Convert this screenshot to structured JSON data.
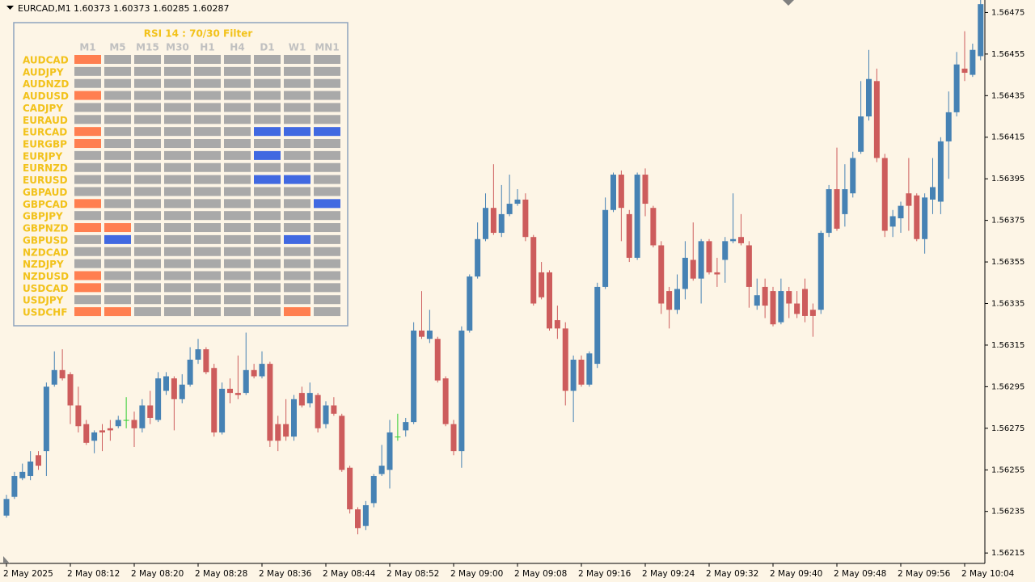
{
  "header": {
    "symbol": "EURCAD,M1",
    "quote": "1.60373 1.60373 1.60285 1.60287"
  },
  "chart_data": {
    "type": "candlestick",
    "categories": [
      "2 May 2025",
      null,
      null,
      null,
      null,
      null,
      null,
      null,
      "2 May 08:12",
      null,
      null,
      null,
      null,
      null,
      null,
      null,
      "2 May 08:20",
      null,
      null,
      null,
      null,
      null,
      null,
      null,
      "2 May 08:28",
      null,
      null,
      null,
      null,
      null,
      null,
      null,
      "2 May 08:36",
      null,
      null,
      null,
      null,
      null,
      null,
      null,
      "2 May 08:44",
      null,
      null,
      null,
      null,
      null,
      null,
      null,
      "2 May 08:52",
      null,
      null,
      null,
      null,
      null,
      null,
      null,
      "2 May 09:00",
      null,
      null,
      null,
      null,
      null,
      null,
      null,
      "2 May 09:08",
      null,
      null,
      null,
      null,
      null,
      null,
      null,
      "2 May 09:16",
      null,
      null,
      null,
      null,
      null,
      null,
      null,
      "2 May 09:24",
      null,
      null,
      null,
      null,
      null,
      null,
      null,
      "2 May 09:32",
      null,
      null,
      null,
      null,
      null,
      null,
      null,
      "2 May 09:40",
      null,
      null,
      null,
      null,
      null,
      null,
      null,
      "2 May 09:48",
      null,
      null,
      null,
      null,
      null,
      null,
      null,
      "2 May 09:56",
      null,
      null,
      null,
      null,
      null,
      null,
      null,
      "2 May 10:04",
      null,
      null
    ],
    "open": [
      1.56233,
      1.56242,
      1.56251,
      1.56252,
      1.56262,
      1.56264,
      1.56296,
      1.56303,
      1.56301,
      1.56286,
      1.56277,
      1.56269,
      1.56274,
      1.56275,
      1.56276,
      1.56279,
      1.56279,
      1.56275,
      1.56286,
      1.56279,
      1.56293,
      1.56299,
      1.56289,
      1.56296,
      1.56308,
      1.56313,
      1.56304,
      1.56273,
      1.56294,
      1.56292,
      1.56292,
      1.56303,
      1.563,
      1.56306,
      1.56277,
      1.56277,
      1.56271,
      1.56292,
      1.56287,
      1.56291,
      1.56277,
      1.56286,
      1.56281,
      1.56256,
      1.56236,
      1.56228,
      1.56239,
      1.56253,
      1.56255,
      1.56271,
      1.56274,
      1.56278,
      1.56322,
      1.56318,
      1.56318,
      1.56299,
      1.56277,
      1.56264,
      1.56322,
      1.56348,
      1.56366,
      1.56381,
      1.56369,
      1.56378,
      1.56383,
      1.56385,
      1.56367,
      1.5635,
      1.5635,
      1.56327,
      1.56323,
      1.56293,
      1.56308,
      1.56296,
      1.56306,
      1.56343,
      1.5638,
      1.56397,
      1.56378,
      1.56357,
      1.56397,
      1.56381,
      1.56363,
      1.56341,
      1.56332,
      1.56342,
      1.56356,
      1.56347,
      1.56365,
      1.5635,
      1.56356,
      1.56365,
      1.56367,
      1.56363,
      1.56334,
      1.56343,
      1.56341,
      1.56326,
      1.56341,
      1.56335,
      1.56342,
      1.56332,
      1.56332,
      1.56369,
      1.5639,
      1.56378,
      1.56388,
      1.56408,
      1.56425,
      1.56442,
      1.56405,
      1.56372,
      1.56376,
      1.56388,
      1.56387,
      1.56366,
      1.56385,
      1.56384,
      1.56413,
      1.56427,
      1.56448,
      1.56445,
      1.56454
    ],
    "high": [
      1.56243,
      1.56254,
      1.56258,
      1.56264,
      1.56264,
      1.56297,
      1.56312,
      1.56313,
      1.56302,
      1.56295,
      1.56279,
      1.56274,
      1.56277,
      1.56279,
      1.56281,
      1.5629,
      1.56283,
      1.56289,
      1.56293,
      1.56302,
      1.56302,
      1.563,
      1.56301,
      1.56314,
      1.56318,
      1.56314,
      1.56306,
      1.56297,
      1.56299,
      1.5631,
      1.56321,
      1.56306,
      1.56312,
      1.56307,
      1.56281,
      1.56289,
      1.56291,
      1.56295,
      1.56297,
      1.56292,
      1.56288,
      1.5629,
      1.56282,
      1.56257,
      1.56237,
      1.5624,
      1.56253,
      1.56267,
      1.56279,
      1.56282,
      1.5628,
      1.56326,
      1.56341,
      1.56332,
      1.56319,
      1.563,
      1.56279,
      1.56324,
      1.56349,
      1.56374,
      1.56388,
      1.56402,
      1.56392,
      1.56397,
      1.5639,
      1.56388,
      1.56368,
      1.56355,
      1.56351,
      1.56334,
      1.56326,
      1.5631,
      1.5631,
      1.56312,
      1.56345,
      1.56386,
      1.56398,
      1.56399,
      1.5638,
      1.56398,
      1.564,
      1.56382,
      1.56365,
      1.56343,
      1.56349,
      1.56365,
      1.56374,
      1.56366,
      1.56366,
      1.56357,
      1.56367,
      1.56388,
      1.56378,
      1.56365,
      1.56347,
      1.56347,
      1.56343,
      1.56347,
      1.56343,
      1.56341,
      1.56347,
      1.56335,
      1.5637,
      1.56392,
      1.5641,
      1.56402,
      1.56408,
      1.56442,
      1.56457,
      1.56448,
      1.56407,
      1.5638,
      1.56384,
      1.56405,
      1.56388,
      1.56388,
      1.56405,
      1.56415,
      1.56437,
      1.56456,
      1.56466,
      1.5646,
      1.56481
    ],
    "low": [
      1.56232,
      1.56241,
      1.5625,
      1.5625,
      1.56255,
      1.56252,
      1.56295,
      1.56298,
      1.56277,
      1.56273,
      1.56267,
      1.56263,
      1.56264,
      1.56269,
      1.56275,
      1.56275,
      1.56266,
      1.56273,
      1.56277,
      1.56278,
      1.56291,
      1.56274,
      1.56287,
      1.56295,
      1.56306,
      1.56301,
      1.56271,
      1.56272,
      1.56287,
      1.56289,
      1.56291,
      1.56299,
      1.56299,
      1.56266,
      1.56264,
      1.56269,
      1.56269,
      1.56285,
      1.56285,
      1.56273,
      1.56275,
      1.56281,
      1.56254,
      1.56234,
      1.56224,
      1.56226,
      1.56237,
      1.56252,
      1.56246,
      1.56269,
      1.56271,
      1.56277,
      1.56318,
      1.56316,
      1.56297,
      1.56276,
      1.56262,
      1.56256,
      1.56321,
      1.56347,
      1.56365,
      1.56368,
      1.56367,
      1.56377,
      1.56382,
      1.56365,
      1.56334,
      1.56337,
      1.56322,
      1.56318,
      1.56286,
      1.56278,
      1.56295,
      1.56295,
      1.56304,
      1.56342,
      1.56379,
      1.56365,
      1.56355,
      1.56356,
      1.56377,
      1.56362,
      1.5633,
      1.56323,
      1.5633,
      1.56337,
      1.56346,
      1.56335,
      1.56349,
      1.56343,
      1.56345,
      1.56364,
      1.56363,
      1.56333,
      1.56332,
      1.56328,
      1.56324,
      1.56325,
      1.56328,
      1.56328,
      1.56326,
      1.56319,
      1.5633,
      1.56367,
      1.5637,
      1.56372,
      1.56386,
      1.56407,
      1.56423,
      1.56403,
      1.56367,
      1.56367,
      1.56369,
      1.5637,
      1.56365,
      1.56359,
      1.56378,
      1.56378,
      1.56395,
      1.56425,
      1.56442,
      1.56444,
      1.56452
    ],
    "close": [
      1.56241,
      1.56252,
      1.56254,
      1.56259,
      1.56257,
      1.56295,
      1.56303,
      1.56299,
      1.56286,
      1.56276,
      1.56268,
      1.56273,
      1.56273,
      1.56274,
      1.56279,
      1.56279,
      1.56275,
      1.56286,
      1.5628,
      1.56299,
      1.563,
      1.56289,
      1.56296,
      1.56308,
      1.56313,
      1.56302,
      1.56273,
      1.56294,
      1.56292,
      1.56291,
      1.56303,
      1.563,
      1.56306,
      1.56269,
      1.56269,
      1.56271,
      1.56289,
      1.56286,
      1.56292,
      1.56275,
      1.56286,
      1.56282,
      1.56255,
      1.56236,
      1.56227,
      1.56238,
      1.56252,
      1.56257,
      1.56273,
      1.56271,
      1.56278,
      1.56322,
      1.56319,
      1.56322,
      1.56298,
      1.56277,
      1.56264,
      1.56322,
      1.56348,
      1.56366,
      1.56381,
      1.56369,
      1.56378,
      1.56383,
      1.56385,
      1.56367,
      1.56335,
      1.56338,
      1.56323,
      1.56323,
      1.56293,
      1.56308,
      1.56296,
      1.56311,
      1.56343,
      1.5638,
      1.56397,
      1.56381,
      1.56357,
      1.56397,
      1.56383,
      1.56363,
      1.56335,
      1.56332,
      1.56342,
      1.56357,
      1.56347,
      1.56365,
      1.5635,
      1.56349,
      1.56365,
      1.56366,
      1.56364,
      1.56343,
      1.56339,
      1.56334,
      1.56325,
      1.56341,
      1.56335,
      1.5633,
      1.56329,
      1.56329,
      1.56369,
      1.5639,
      1.56371,
      1.5639,
      1.56405,
      1.56425,
      1.56443,
      1.56405,
      1.5637,
      1.56377,
      1.56382,
      1.56382,
      1.56366,
      1.56386,
      1.56391,
      1.56413,
      1.56427,
      1.5645,
      1.56446,
      1.56457,
      1.56479
    ],
    "up_color": "#4682b4",
    "down_color": "#cd5c5c",
    "doji_color": "#32cd32",
    "ylim": [
      1.5621,
      1.56481
    ],
    "yticks": [
      1.56475,
      1.56455,
      1.56435,
      1.56415,
      1.56395,
      1.56375,
      1.56355,
      1.56335,
      1.56315,
      1.56295,
      1.56275,
      1.56255,
      1.56235,
      1.56215
    ]
  },
  "panel": {
    "title": "RSI 14 : 70/30 Filter",
    "columns": [
      "M1",
      "M5",
      "M15",
      "M30",
      "H1",
      "H4",
      "D1",
      "W1",
      "MN1"
    ],
    "rows": [
      {
        "pair": "AUDCAD",
        "cells": [
          "#ff7f50",
          "#a9a9a9",
          "#a9a9a9",
          "#a9a9a9",
          "#a9a9a9",
          "#a9a9a9",
          "#a9a9a9",
          "#a9a9a9",
          "#a9a9a9"
        ]
      },
      {
        "pair": "AUDJPY",
        "cells": [
          "#a9a9a9",
          "#a9a9a9",
          "#a9a9a9",
          "#a9a9a9",
          "#a9a9a9",
          "#a9a9a9",
          "#a9a9a9",
          "#a9a9a9",
          "#a9a9a9"
        ]
      },
      {
        "pair": "AUDNZD",
        "cells": [
          "#a9a9a9",
          "#a9a9a9",
          "#a9a9a9",
          "#a9a9a9",
          "#a9a9a9",
          "#a9a9a9",
          "#a9a9a9",
          "#a9a9a9",
          "#a9a9a9"
        ]
      },
      {
        "pair": "AUDUSD",
        "cells": [
          "#ff7f50",
          "#a9a9a9",
          "#a9a9a9",
          "#a9a9a9",
          "#a9a9a9",
          "#a9a9a9",
          "#a9a9a9",
          "#a9a9a9",
          "#a9a9a9"
        ]
      },
      {
        "pair": "CADJPY",
        "cells": [
          "#a9a9a9",
          "#a9a9a9",
          "#a9a9a9",
          "#a9a9a9",
          "#a9a9a9",
          "#a9a9a9",
          "#a9a9a9",
          "#a9a9a9",
          "#a9a9a9"
        ]
      },
      {
        "pair": "EURAUD",
        "cells": [
          "#a9a9a9",
          "#a9a9a9",
          "#a9a9a9",
          "#a9a9a9",
          "#a9a9a9",
          "#a9a9a9",
          "#a9a9a9",
          "#a9a9a9",
          "#a9a9a9"
        ]
      },
      {
        "pair": "EURCAD",
        "cells": [
          "#ff7f50",
          "#a9a9a9",
          "#a9a9a9",
          "#a9a9a9",
          "#a9a9a9",
          "#a9a9a9",
          "#4169e1",
          "#4169e1",
          "#4169e1"
        ]
      },
      {
        "pair": "EURGBP",
        "cells": [
          "#ff7f50",
          "#a9a9a9",
          "#a9a9a9",
          "#a9a9a9",
          "#a9a9a9",
          "#a9a9a9",
          "#a9a9a9",
          "#a9a9a9",
          "#a9a9a9"
        ]
      },
      {
        "pair": "EURJPY",
        "cells": [
          "#a9a9a9",
          "#a9a9a9",
          "#a9a9a9",
          "#a9a9a9",
          "#a9a9a9",
          "#a9a9a9",
          "#4169e1",
          "#a9a9a9",
          "#a9a9a9"
        ]
      },
      {
        "pair": "EURNZD",
        "cells": [
          "#a9a9a9",
          "#a9a9a9",
          "#a9a9a9",
          "#a9a9a9",
          "#a9a9a9",
          "#a9a9a9",
          "#a9a9a9",
          "#a9a9a9",
          "#a9a9a9"
        ]
      },
      {
        "pair": "EURUSD",
        "cells": [
          "#a9a9a9",
          "#a9a9a9",
          "#a9a9a9",
          "#a9a9a9",
          "#a9a9a9",
          "#a9a9a9",
          "#4169e1",
          "#4169e1",
          "#a9a9a9"
        ]
      },
      {
        "pair": "GBPAUD",
        "cells": [
          "#a9a9a9",
          "#a9a9a9",
          "#a9a9a9",
          "#a9a9a9",
          "#a9a9a9",
          "#a9a9a9",
          "#a9a9a9",
          "#a9a9a9",
          "#a9a9a9"
        ]
      },
      {
        "pair": "GBPCAD",
        "cells": [
          "#ff7f50",
          "#a9a9a9",
          "#a9a9a9",
          "#a9a9a9",
          "#a9a9a9",
          "#a9a9a9",
          "#a9a9a9",
          "#a9a9a9",
          "#4169e1"
        ]
      },
      {
        "pair": "GBPJPY",
        "cells": [
          "#a9a9a9",
          "#a9a9a9",
          "#a9a9a9",
          "#a9a9a9",
          "#a9a9a9",
          "#a9a9a9",
          "#a9a9a9",
          "#a9a9a9",
          "#a9a9a9"
        ]
      },
      {
        "pair": "GBPNZD",
        "cells": [
          "#ff7f50",
          "#ff7f50",
          "#a9a9a9",
          "#a9a9a9",
          "#a9a9a9",
          "#a9a9a9",
          "#a9a9a9",
          "#a9a9a9",
          "#a9a9a9"
        ]
      },
      {
        "pair": "GBPUSD",
        "cells": [
          "#a9a9a9",
          "#4169e1",
          "#a9a9a9",
          "#a9a9a9",
          "#a9a9a9",
          "#a9a9a9",
          "#a9a9a9",
          "#4169e1",
          "#a9a9a9"
        ]
      },
      {
        "pair": "NZDCAD",
        "cells": [
          "#a9a9a9",
          "#a9a9a9",
          "#a9a9a9",
          "#a9a9a9",
          "#a9a9a9",
          "#a9a9a9",
          "#a9a9a9",
          "#a9a9a9",
          "#a9a9a9"
        ]
      },
      {
        "pair": "NZDJPY",
        "cells": [
          "#a9a9a9",
          "#a9a9a9",
          "#a9a9a9",
          "#a9a9a9",
          "#a9a9a9",
          "#a9a9a9",
          "#a9a9a9",
          "#a9a9a9",
          "#a9a9a9"
        ]
      },
      {
        "pair": "NZDUSD",
        "cells": [
          "#ff7f50",
          "#a9a9a9",
          "#a9a9a9",
          "#a9a9a9",
          "#a9a9a9",
          "#a9a9a9",
          "#a9a9a9",
          "#a9a9a9",
          "#a9a9a9"
        ]
      },
      {
        "pair": "USDCAD",
        "cells": [
          "#ff7f50",
          "#a9a9a9",
          "#a9a9a9",
          "#a9a9a9",
          "#a9a9a9",
          "#a9a9a9",
          "#a9a9a9",
          "#a9a9a9",
          "#a9a9a9"
        ]
      },
      {
        "pair": "USDJPY",
        "cells": [
          "#a9a9a9",
          "#a9a9a9",
          "#a9a9a9",
          "#a9a9a9",
          "#a9a9a9",
          "#a9a9a9",
          "#a9a9a9",
          "#a9a9a9",
          "#a9a9a9"
        ]
      },
      {
        "pair": "USDCHF",
        "cells": [
          "#ff7f50",
          "#ff7f50",
          "#a9a9a9",
          "#a9a9a9",
          "#a9a9a9",
          "#a9a9a9",
          "#a9a9a9",
          "#ff7f50",
          "#a9a9a9"
        ]
      }
    ]
  }
}
